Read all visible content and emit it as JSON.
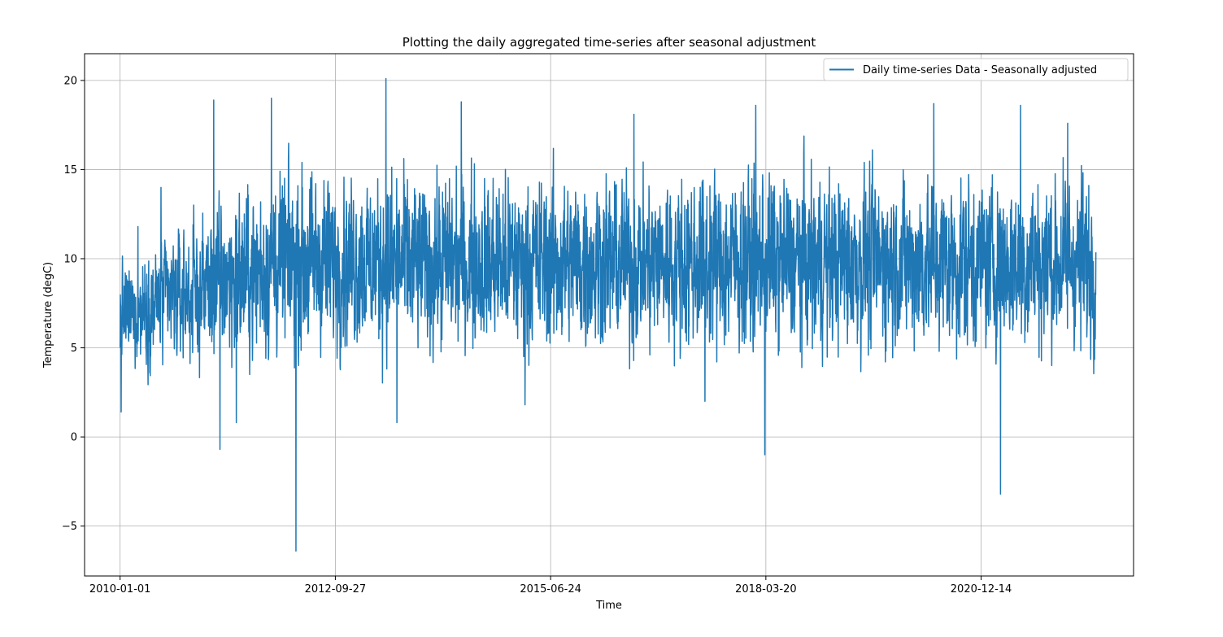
{
  "chart_data": {
    "type": "line",
    "title": "Plotting the daily aggregated time-series after seasonal adjustment",
    "xlabel": "Time",
    "ylabel": "Temperature (degC)",
    "grid": true,
    "legend_position": "top-right",
    "x_range": [
      "2009-07-20",
      "2022-11-22"
    ],
    "ylim": [
      -7.8,
      21.5
    ],
    "x_ticks": [
      "2010-01-01",
      "2012-09-27",
      "2015-06-24",
      "2018-03-20",
      "2020-12-14"
    ],
    "y_ticks": [
      -5,
      0,
      5,
      10,
      15,
      20
    ],
    "series": [
      {
        "name": "Daily time-series Data - Seasonally adjusted",
        "color": "#1f77b4",
        "start_date": "2010-01-01",
        "end_date": "2022-05-31",
        "frequency": "daily",
        "mean": 9.8,
        "anchors": [
          {
            "date": "2010-01-01",
            "value": 5.0
          },
          {
            "date": "2010-01-06",
            "value": 1.4
          },
          {
            "date": "2010-03-25",
            "value": 11.8
          },
          {
            "date": "2010-07-10",
            "value": 14.0
          },
          {
            "date": "2011-03-12",
            "value": 18.9
          },
          {
            "date": "2011-04-10",
            "value": -0.7
          },
          {
            "date": "2011-06-25",
            "value": 0.8
          },
          {
            "date": "2011-12-05",
            "value": 19.0
          },
          {
            "date": "2012-03-28",
            "value": -6.4
          },
          {
            "date": "2013-05-20",
            "value": 20.1
          },
          {
            "date": "2013-07-10",
            "value": 0.8
          },
          {
            "date": "2014-05-05",
            "value": 18.8
          },
          {
            "date": "2015-02-25",
            "value": 1.8
          },
          {
            "date": "2016-07-15",
            "value": 18.1
          },
          {
            "date": "2017-06-10",
            "value": 2.0
          },
          {
            "date": "2018-02-01",
            "value": 18.6
          },
          {
            "date": "2018-03-15",
            "value": -1.0
          },
          {
            "date": "2020-05-08",
            "value": 18.7
          },
          {
            "date": "2021-03-14",
            "value": -3.2
          },
          {
            "date": "2021-06-15",
            "value": 18.6
          },
          {
            "date": "2022-01-20",
            "value": 17.6
          }
        ]
      }
    ]
  }
}
